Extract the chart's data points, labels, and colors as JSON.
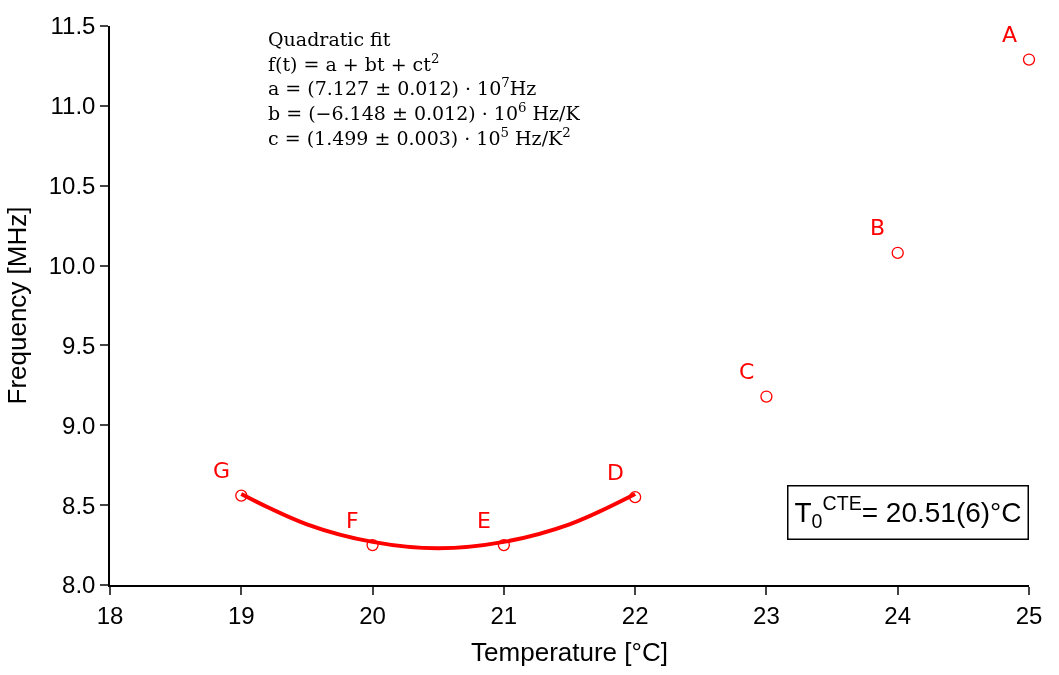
{
  "chart_data": {
    "type": "scatter",
    "xlabel": "Temperature [°C]",
    "ylabel": "Frequency [MHz]",
    "xlim": [
      18,
      25
    ],
    "xticks": [
      18,
      19,
      20,
      21,
      22,
      23,
      24,
      25
    ],
    "ylim": [
      8.0,
      11.5
    ],
    "yticks": [
      {
        "value": 8.0,
        "label": "8.0"
      },
      {
        "value": 8.5,
        "label": "8.5"
      },
      {
        "value": 9.0,
        "label": "9.0"
      },
      {
        "value": 9.5,
        "label": "9.5"
      },
      {
        "value": 10.0,
        "label": "10.0"
      },
      {
        "value": 10.5,
        "label": "10.5"
      },
      {
        "value": 11.0,
        "label": "11.0"
      },
      {
        "value": 11.5,
        "label": "11.5"
      }
    ],
    "series": [
      {
        "marker": "circle",
        "color": "#ff0000",
        "x": [
          25,
          24,
          23,
          22,
          21,
          20,
          19
        ],
        "values": [
          11.29,
          10.08,
          9.18,
          8.55,
          8.25,
          8.25,
          8.56
        ]
      },
      {
        "type": "line",
        "marker": "none",
        "color": "#ff0000",
        "x": [
          19,
          19.5,
          20,
          20.5,
          21,
          21.5,
          22
        ],
        "values": [
          8.57,
          8.38,
          8.27,
          8.23,
          8.27,
          8.38,
          8.57
        ]
      }
    ],
    "annotations": [
      "Quadratic fit\nf(t) = a + bt + ct$^{2}$\na = (7.127 ± 0.012) · 10$^{7}$Hz\nb = (−6.148 ± 0.012) · 10$^{6}$ Hz/K\nc = (1.499 ± 0.003) · 10$^{5}$ Hz/K$^{2}$",
      "T$_{0}$$^{CTE}$= 20.51(6)°C",
      {
        "text": "A",
        "x": 25,
        "y": 11.29
      },
      {
        "text": "B",
        "x": 24,
        "y": 10.08
      },
      {
        "text": "C",
        "x": 23,
        "y": 9.18
      },
      {
        "text": "D",
        "x": 22,
        "y": 8.55
      },
      {
        "text": "E",
        "x": 21,
        "y": 8.25
      },
      {
        "text": "F",
        "x": 20,
        "y": 8.25
      },
      {
        "text": "G",
        "x": 19,
        "y": 8.56
      }
    ]
  }
}
